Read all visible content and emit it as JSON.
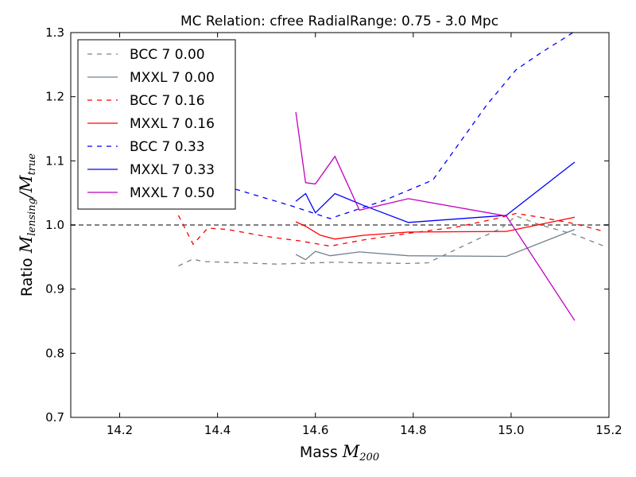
{
  "chart_data": {
    "type": "line",
    "title": "MC Relation: cfree RadialRange: 0.75 - 3.0 Mpc",
    "xlabel": {
      "prefix": "Mass ",
      "math_main": "M",
      "math_sub": "200"
    },
    "ylabel": {
      "prefix": "Ratio ",
      "num_main": "M",
      "num_sub": "lensing",
      "den_main": "M",
      "den_sub": "true"
    },
    "xlim": [
      14.1,
      15.2
    ],
    "ylim": [
      0.7,
      1.3
    ],
    "xticks": [
      14.2,
      14.4,
      14.6,
      14.8,
      15.0,
      15.2
    ],
    "xtick_labels": [
      "14.2",
      "14.4",
      "14.6",
      "14.8",
      "15.0",
      "15.2"
    ],
    "yticks": [
      0.7,
      0.8,
      0.9,
      1.0,
      1.1,
      1.2,
      1.3
    ],
    "ytick_labels": [
      "0.7",
      "0.8",
      "0.9",
      "1.0",
      "1.1",
      "1.2",
      "1.3"
    ],
    "reference_line": {
      "y": 1.0,
      "color": "#808080",
      "style": "dashed"
    },
    "grid": false,
    "legend_position": "top-left",
    "series": [
      {
        "name": "BCC 7 0.00",
        "color": "#808080",
        "style": "dashed",
        "x": [
          14.32,
          14.35,
          14.37,
          14.45,
          14.52,
          14.56,
          14.6,
          14.64,
          14.7,
          14.79,
          14.83,
          14.91,
          14.98,
          15.01,
          15.06,
          15.13,
          15.19
        ],
        "y": [
          0.936,
          0.947,
          0.943,
          0.941,
          0.939,
          0.94,
          0.941,
          0.942,
          0.941,
          0.94,
          0.941,
          0.97,
          0.995,
          1.014,
          1.0,
          0.985,
          0.967
        ]
      },
      {
        "name": "MXXL 7 0.00",
        "color": "#708090",
        "style": "solid",
        "x": [
          14.56,
          14.58,
          14.6,
          14.63,
          14.69,
          14.79,
          14.99,
          15.13
        ],
        "y": [
          0.954,
          0.946,
          0.959,
          0.952,
          0.958,
          0.952,
          0.951,
          0.993
        ]
      },
      {
        "name": "BCC 7 0.16",
        "color": "#ff0000",
        "style": "dashed",
        "x": [
          14.32,
          14.35,
          14.38,
          14.42,
          14.5,
          14.57,
          14.63,
          14.7,
          14.79,
          14.89,
          14.97,
          15.01,
          15.06,
          15.13,
          15.19
        ],
        "y": [
          1.015,
          0.97,
          0.995,
          0.993,
          0.982,
          0.975,
          0.967,
          0.977,
          0.987,
          0.997,
          1.01,
          1.018,
          1.012,
          1.002,
          0.99
        ]
      },
      {
        "name": "MXXL 7 0.16",
        "color": "#ff0000",
        "style": "solid",
        "x": [
          14.56,
          14.58,
          14.61,
          14.64,
          14.7,
          14.79,
          14.99,
          15.13
        ],
        "y": [
          1.005,
          0.998,
          0.984,
          0.978,
          0.984,
          0.989,
          0.99,
          1.012
        ]
      },
      {
        "name": "BCC 7 0.33",
        "color": "#0000ff",
        "style": "dashed",
        "x": [
          14.34,
          14.44,
          14.55,
          14.63,
          14.74,
          14.84,
          14.95,
          15.01,
          15.06,
          15.11,
          15.13
        ],
        "y": [
          1.066,
          1.055,
          1.03,
          1.01,
          1.038,
          1.07,
          1.187,
          1.242,
          1.268,
          1.292,
          1.302
        ]
      },
      {
        "name": "MXXL 7 0.33",
        "color": "#0000ff",
        "style": "solid",
        "x": [
          14.56,
          14.58,
          14.6,
          14.64,
          14.7,
          14.79,
          14.99,
          15.13
        ],
        "y": [
          1.037,
          1.049,
          1.019,
          1.049,
          1.03,
          1.004,
          1.015,
          1.098
        ]
      },
      {
        "name": "MXXL 7 0.50",
        "color": "#bf00bf",
        "style": "solid",
        "x": [
          14.56,
          14.58,
          14.6,
          14.64,
          14.69,
          14.79,
          14.99,
          15.13
        ],
        "y": [
          1.176,
          1.066,
          1.064,
          1.107,
          1.023,
          1.041,
          1.014,
          0.851
        ]
      }
    ]
  }
}
